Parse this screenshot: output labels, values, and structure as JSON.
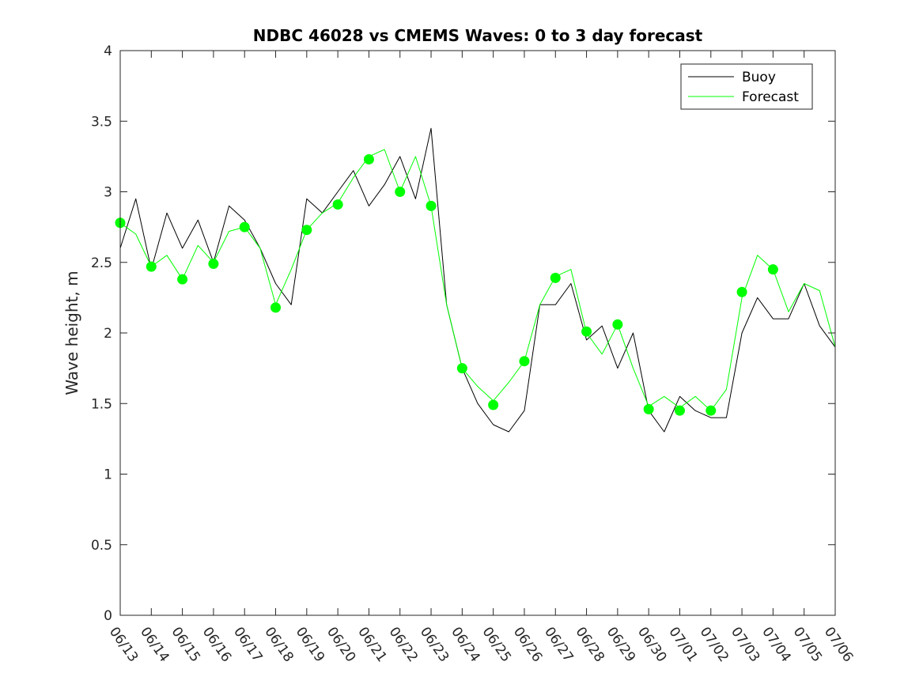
{
  "chart_data": {
    "type": "line",
    "title": "NDBC 46028 vs CMEMS Waves: 0 to 3 day forecast",
    "xlabel": "",
    "ylabel": "Wave height, m",
    "x_tick_labels": [
      "06/13",
      "06/14",
      "06/15",
      "06/16",
      "06/17",
      "06/18",
      "06/19",
      "06/20",
      "06/21",
      "06/22",
      "06/23",
      "06/24",
      "06/25",
      "06/26",
      "06/27",
      "06/28",
      "06/29",
      "06/30",
      "07/01",
      "07/02",
      "07/03",
      "07/04",
      "07/05",
      "07/06"
    ],
    "y_ticks": [
      0,
      0.5,
      1,
      1.5,
      2,
      2.5,
      3,
      3.5,
      4
    ],
    "xlim": [
      "06/13",
      "07/06"
    ],
    "ylim": [
      0,
      4
    ],
    "grid": false,
    "legend_position": "top-right",
    "colors": {
      "buoy": "#000000",
      "forecast": "#00ff00"
    },
    "series": [
      {
        "name": "Buoy",
        "x_days_since_0613": [
          0,
          0.5,
          1,
          1.5,
          2,
          2.5,
          3,
          3.5,
          4,
          4.5,
          5,
          5.5,
          6,
          6.5,
          7,
          7.5,
          8,
          8.5,
          9,
          9.5,
          10,
          10.5,
          11,
          11.5,
          12,
          12.5,
          13,
          13.5,
          14,
          14.5,
          15,
          15.5,
          16,
          16.5,
          17,
          17.5,
          18,
          18.5,
          19,
          19.5,
          20,
          20.5,
          21,
          21.5,
          22,
          22.5,
          23
        ],
        "values": [
          2.6,
          2.95,
          2.45,
          2.85,
          2.6,
          2.8,
          2.5,
          2.9,
          2.8,
          2.6,
          2.35,
          2.2,
          2.95,
          2.85,
          3.0,
          3.15,
          2.9,
          3.05,
          3.25,
          2.95,
          3.45,
          2.2,
          1.75,
          1.5,
          1.35,
          1.3,
          1.45,
          2.2,
          2.2,
          2.35,
          1.95,
          2.05,
          1.75,
          2.0,
          1.45,
          1.3,
          1.55,
          1.45,
          1.4,
          1.4,
          2.0,
          2.25,
          2.1,
          2.1,
          2.35,
          2.05,
          1.9
        ]
      },
      {
        "name": "Forecast",
        "x_days_since_0613": [
          0,
          0.5,
          1,
          1.5,
          2,
          2.5,
          3,
          3.5,
          4,
          4.5,
          5,
          5.5,
          6,
          6.5,
          7,
          7.5,
          8,
          8.5,
          9,
          9.5,
          10,
          10.5,
          11,
          11.5,
          12,
          12.5,
          13,
          13.5,
          14,
          14.5,
          15,
          15.5,
          16,
          16.5,
          17,
          17.5,
          18,
          18.5,
          19,
          19.5,
          20,
          20.5,
          21,
          21.5,
          22,
          22.5,
          23
        ],
        "values": [
          2.78,
          2.7,
          2.47,
          2.55,
          2.38,
          2.62,
          2.5,
          2.72,
          2.75,
          2.6,
          2.2,
          2.45,
          2.73,
          2.85,
          2.92,
          3.1,
          3.25,
          3.3,
          3.0,
          3.25,
          2.9,
          2.2,
          1.75,
          1.62,
          1.52,
          1.65,
          1.8,
          2.2,
          2.4,
          2.45,
          2.0,
          1.85,
          2.06,
          1.75,
          1.48,
          1.55,
          1.47,
          1.55,
          1.45,
          1.6,
          2.25,
          2.55,
          2.45,
          2.15,
          2.35,
          2.3,
          1.9
        ]
      }
    ],
    "forecast_markers": {
      "x_days_since_0613": [
        0,
        1,
        2,
        3,
        4,
        5,
        6,
        7,
        8,
        9,
        10,
        11,
        12,
        13,
        14,
        15,
        16,
        17,
        18,
        19,
        20,
        21
      ],
      "values": [
        2.78,
        2.47,
        2.38,
        2.49,
        2.75,
        2.18,
        2.73,
        2.91,
        3.23,
        3.0,
        2.9,
        1.75,
        1.49,
        1.8,
        2.39,
        2.01,
        2.06,
        1.46,
        1.45,
        1.45,
        2.29,
        2.45
      ]
    }
  }
}
